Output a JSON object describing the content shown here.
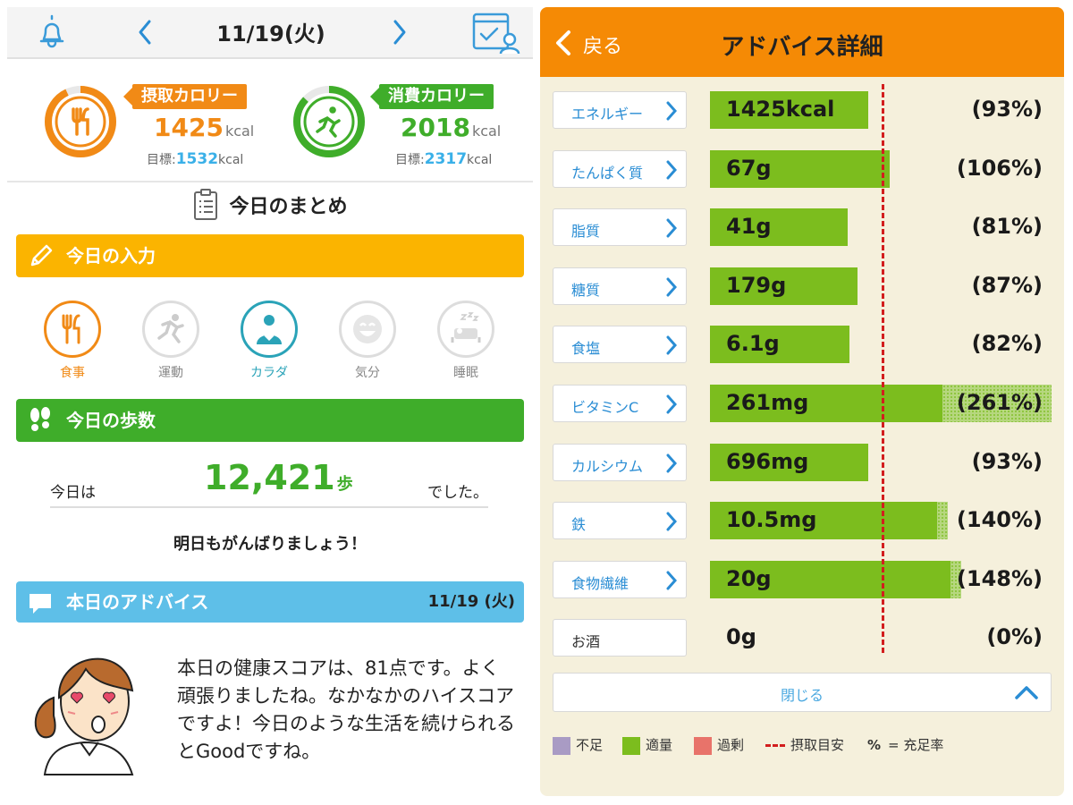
{
  "left": {
    "date": "11/19(火)",
    "intake": {
      "label": "摂取カロリー",
      "value": "1425",
      "unit": "kcal",
      "goal_label": "目標:",
      "goal_value": "1532",
      "goal_unit": "kcal",
      "ring_fraction": 0.93
    },
    "burn": {
      "label": "消費カロリー",
      "value": "2018",
      "unit": "kcal",
      "goal_label": "目標:",
      "goal_value": "2317",
      "goal_unit": "kcal",
      "ring_fraction": 0.87
    },
    "summary_title": "今日のまとめ",
    "input_section": "今日の入力",
    "entries": [
      "食事",
      "運動",
      "カラダ",
      "気分",
      "睡眠"
    ],
    "steps_section": "今日の歩数",
    "steps_pre": "今日は",
    "steps_value": "12,421",
    "steps_unit": "歩",
    "steps_post": "でした。",
    "cheer": "明日もがんばりましょう！",
    "advice_section": "本日のアドバイス",
    "advice_date": "11/19 (火)",
    "advice_text": "本日の健康スコアは、81点です。よく頑張りましたね。なかなかのハイスコアですよ！今日のような生活を続けられるとGoodですね。"
  },
  "right": {
    "back_label": "戻る",
    "title": "アドバイス詳細",
    "nutrients": [
      {
        "name": "エネルギー",
        "link": true,
        "value": "1425kcal",
        "pct": "(93%)",
        "percent": 93
      },
      {
        "name": "たんぱく質",
        "link": true,
        "value": "67g",
        "pct": "(106%)",
        "percent": 106
      },
      {
        "name": "脂質",
        "link": true,
        "value": "41g",
        "pct": "(81%)",
        "percent": 81
      },
      {
        "name": "糖質",
        "link": true,
        "value": "179g",
        "pct": "(87%)",
        "percent": 87
      },
      {
        "name": "食塩",
        "link": true,
        "value": "6.1g",
        "pct": "(82%)",
        "percent": 82
      },
      {
        "name": "ビタミンC",
        "link": true,
        "value": "261mg",
        "pct": "(261%)",
        "percent": 261
      },
      {
        "name": "カルシウム",
        "link": true,
        "value": "696mg",
        "pct": "(93%)",
        "percent": 93
      },
      {
        "name": "鉄",
        "link": true,
        "value": "10.5mg",
        "pct": "(140%)",
        "percent": 140
      },
      {
        "name": "食物繊維",
        "link": true,
        "value": "20g",
        "pct": "(148%)",
        "percent": 148
      },
      {
        "name": "お酒",
        "link": false,
        "value": "0g",
        "pct": "(0%)",
        "percent": 0
      }
    ],
    "close_label": "閉じる",
    "legend": {
      "shortage": "不足",
      "adequate": "適量",
      "excess": "過剰",
      "target": "摂取目安",
      "pct_symbol": "%",
      "pct_desc": "= 充足率"
    },
    "colors": {
      "shortage": "#a99bc4",
      "adequate": "#7cbd1e",
      "excess": "#e8736a",
      "target": "#d21e1e",
      "header": "#f58a05"
    }
  }
}
